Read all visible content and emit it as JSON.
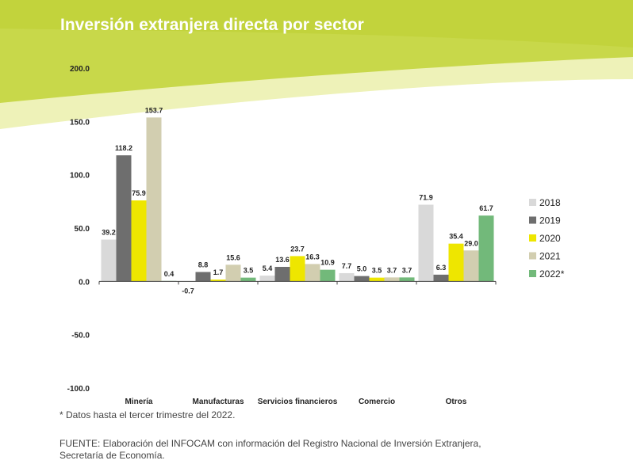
{
  "title": "Inversión extranjera directa por sector",
  "footnote": "* Datos hasta el tercer trimestre del 2022.",
  "source": {
    "line1": "FUENTE: Elaboración del INFOCAM con información del Registro Nacional de Inversión Extranjera,",
    "line2": "Secretaría de Economía."
  },
  "colors": {
    "header_band": "#c8d84a",
    "header_band_light": "#eef2b8",
    "2018": "#d9d9d9",
    "2019": "#6e6e6e",
    "2020": "#eee600",
    "2021": "#d2ceb0",
    "2022*": "#72b97a"
  },
  "chart_data": {
    "type": "bar",
    "categories": [
      "Minería",
      "Manufacturas",
      "Servicios financieros",
      "Comercio",
      "Otros"
    ],
    "series": [
      {
        "name": "2018",
        "values": [
          39.2,
          null,
          5.4,
          7.7,
          71.9
        ]
      },
      {
        "name": "2019",
        "values": [
          118.2,
          8.8,
          13.6,
          5.0,
          6.3
        ]
      },
      {
        "name": "2020",
        "values": [
          75.9,
          1.7,
          23.7,
          3.5,
          35.4
        ]
      },
      {
        "name": "2021",
        "values": [
          153.7,
          15.6,
          16.3,
          3.7,
          29.0
        ]
      },
      {
        "name": "2022*",
        "values": [
          0.4,
          3.5,
          10.9,
          3.7,
          61.7
        ]
      }
    ],
    "extra_labels": [
      {
        "category": "Manufacturas",
        "text": "-0.7"
      }
    ],
    "yticks": [
      "200.0",
      "150.0",
      "100.0",
      "50.0",
      "0.0",
      "-50.0",
      "-100.0"
    ],
    "ylim": [
      -100,
      200
    ],
    "legend_position": "right"
  }
}
